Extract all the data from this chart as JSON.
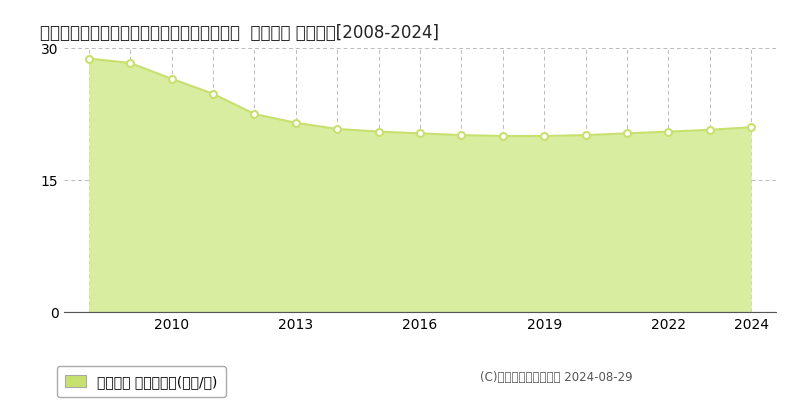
{
  "title": "埼玉県比企郡滑川町月の輪２丁目１４番３外  地価公示 地価推移[2008-2024]",
  "years": [
    2008,
    2009,
    2010,
    2011,
    2012,
    2013,
    2014,
    2015,
    2016,
    2017,
    2018,
    2019,
    2020,
    2021,
    2022,
    2023,
    2024
  ],
  "values": [
    28.8,
    28.3,
    26.5,
    24.8,
    22.5,
    21.5,
    20.8,
    20.5,
    20.3,
    20.1,
    20.0,
    20.0,
    20.1,
    20.3,
    20.5,
    20.7,
    21.0
  ],
  "ylim": [
    0,
    30
  ],
  "yticks": [
    0,
    15,
    30
  ],
  "xticks": [
    2010,
    2013,
    2016,
    2019,
    2022,
    2024
  ],
  "line_color": "#c8e06e",
  "fill_color": "#d8eda0",
  "marker_face": "#ffffff",
  "marker_edge": "#c8e06e",
  "grid_color": "#bbbbbb",
  "bg_color": "#ffffff",
  "legend_label": "地価公示 平均坪単価(万円/坪)",
  "legend_color": "#c8e06e",
  "copyright_text": "(C)土地価格ドットコム 2024-08-29",
  "title_fontsize": 12,
  "axis_fontsize": 10,
  "legend_fontsize": 10,
  "xlim_left": 2007.4,
  "xlim_right": 2024.6
}
